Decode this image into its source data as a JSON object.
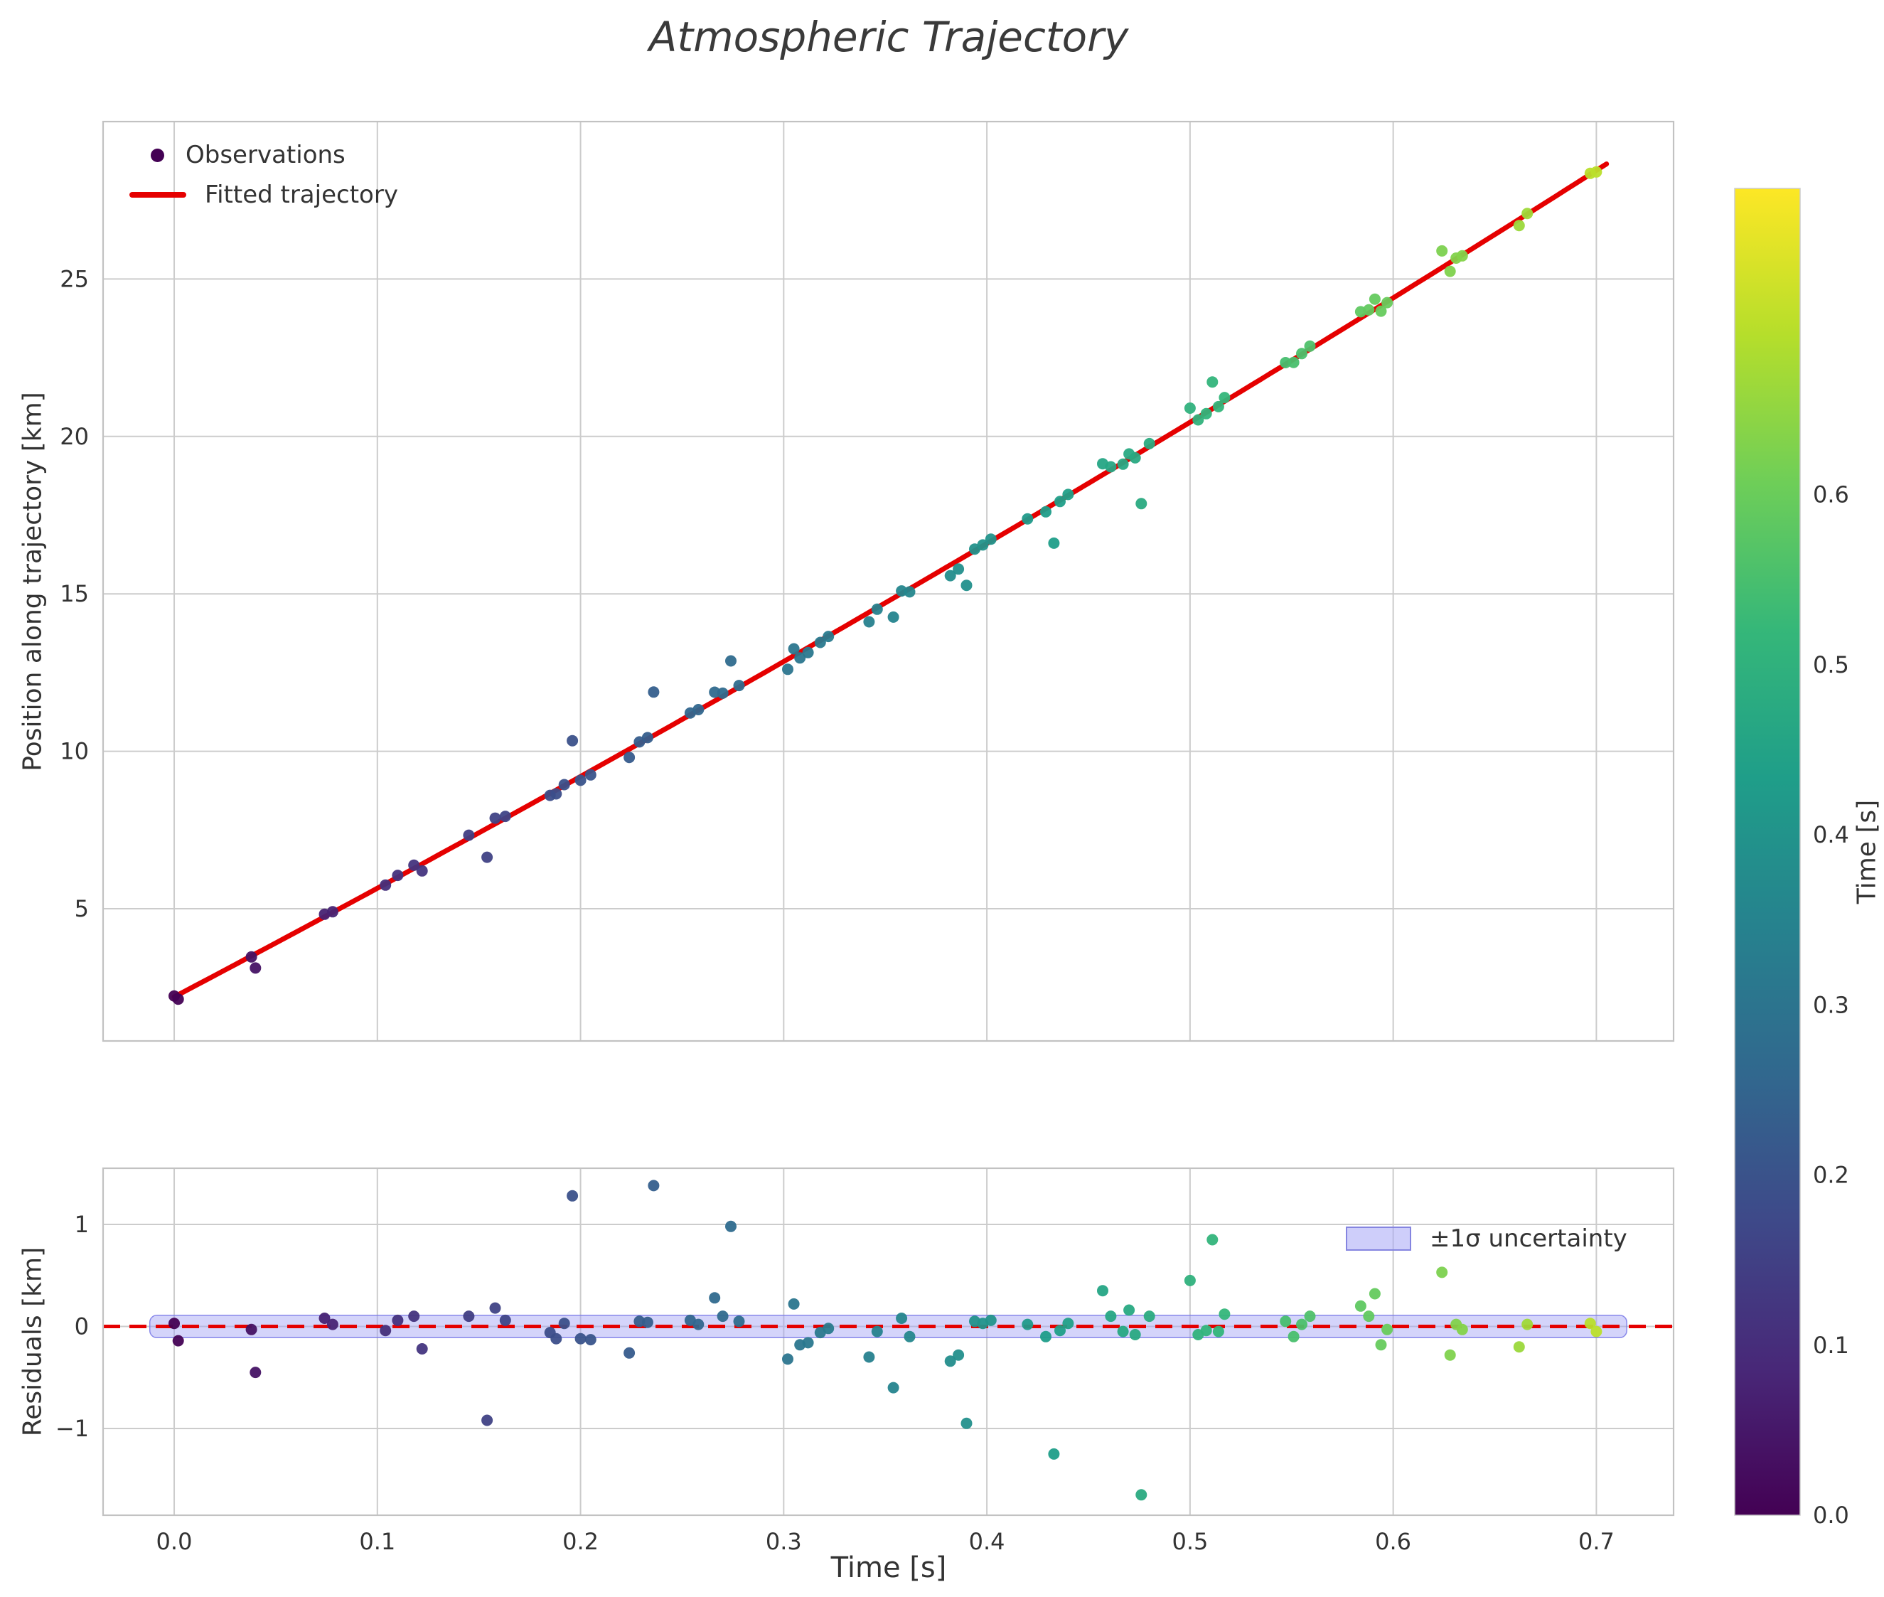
{
  "figure": {
    "title": "Atmospheric Trajectory",
    "background": "#ffffff"
  },
  "chart_data": [
    {
      "type": "scatter",
      "name": "trajectory-panel",
      "title": "Atmospheric Trajectory",
      "xlabel": "Time [s]",
      "ylabel": "Position along trajectory [km]",
      "xlim": [
        -0.035,
        0.738
      ],
      "ylim": [
        0.8,
        30.0
      ],
      "xticks": [
        0.0,
        0.1,
        0.2,
        0.3,
        0.4,
        0.5,
        0.6,
        0.7
      ],
      "show_xtick_labels": false,
      "yticks": [
        5,
        10,
        15,
        20,
        25
      ],
      "ytick_labels": [
        "5",
        "10",
        "15",
        "20",
        "25"
      ],
      "grid": true,
      "colormap": "viridis",
      "color_by": "time_s",
      "color_vmin": 0.0,
      "color_vmax": 0.78,
      "marker_color_first": "#440154",
      "fit_line": {
        "label": "Fitted trajectory",
        "color": "#e50000",
        "model": "position_km = 2.2 + 34*t + 5*t^2",
        "coeffs": [
          2.2,
          34,
          5
        ],
        "t_start": 0.0,
        "t_end": 0.705
      },
      "legend": {
        "position": "upper-left",
        "entries": [
          {
            "label": "Observations",
            "marker": "dot",
            "color": "#440154"
          },
          {
            "label": "Fitted trajectory",
            "marker": "line",
            "color": "#e50000"
          }
        ]
      },
      "series_note": "observations are [time_s, residual_km]; position_km = fit(t) + residual_km",
      "observations": [
        [
          0.0,
          0.03
        ],
        [
          0.002,
          -0.14
        ],
        [
          0.038,
          -0.03
        ],
        [
          0.04,
          -0.45
        ],
        [
          0.074,
          0.08
        ],
        [
          0.078,
          0.02
        ],
        [
          0.104,
          -0.04
        ],
        [
          0.11,
          0.06
        ],
        [
          0.118,
          0.1
        ],
        [
          0.122,
          -0.22
        ],
        [
          0.145,
          0.1
        ],
        [
          0.154,
          -0.92
        ],
        [
          0.158,
          0.18
        ],
        [
          0.163,
          0.06
        ],
        [
          0.185,
          -0.06
        ],
        [
          0.188,
          -0.12
        ],
        [
          0.192,
          0.03
        ],
        [
          0.196,
          1.28
        ],
        [
          0.2,
          -0.12
        ],
        [
          0.205,
          -0.13
        ],
        [
          0.224,
          -0.26
        ],
        [
          0.229,
          0.05
        ],
        [
          0.233,
          0.04
        ],
        [
          0.236,
          1.38
        ],
        [
          0.254,
          0.06
        ],
        [
          0.258,
          0.02
        ],
        [
          0.266,
          0.28
        ],
        [
          0.27,
          0.1
        ],
        [
          0.274,
          0.98
        ],
        [
          0.278,
          0.05
        ],
        [
          0.302,
          -0.32
        ],
        [
          0.305,
          0.22
        ],
        [
          0.308,
          -0.18
        ],
        [
          0.312,
          -0.16
        ],
        [
          0.318,
          -0.06
        ],
        [
          0.322,
          -0.02
        ],
        [
          0.342,
          -0.3
        ],
        [
          0.346,
          -0.05
        ],
        [
          0.354,
          -0.6
        ],
        [
          0.358,
          0.08
        ],
        [
          0.362,
          -0.1
        ],
        [
          0.382,
          -0.34
        ],
        [
          0.386,
          -0.28
        ],
        [
          0.39,
          -0.95
        ],
        [
          0.394,
          0.05
        ],
        [
          0.398,
          0.03
        ],
        [
          0.402,
          0.06
        ],
        [
          0.42,
          0.02
        ],
        [
          0.429,
          -0.1
        ],
        [
          0.433,
          -1.25
        ],
        [
          0.436,
          -0.04
        ],
        [
          0.44,
          0.03
        ],
        [
          0.457,
          0.35
        ],
        [
          0.461,
          0.1
        ],
        [
          0.467,
          -0.05
        ],
        [
          0.47,
          0.16
        ],
        [
          0.473,
          -0.08
        ],
        [
          0.476,
          -1.65
        ],
        [
          0.48,
          0.1
        ],
        [
          0.5,
          0.45
        ],
        [
          0.504,
          -0.08
        ],
        [
          0.508,
          -0.04
        ],
        [
          0.511,
          0.85
        ],
        [
          0.514,
          -0.05
        ],
        [
          0.517,
          0.12
        ],
        [
          0.547,
          0.05
        ],
        [
          0.551,
          -0.1
        ],
        [
          0.555,
          0.02
        ],
        [
          0.559,
          0.1
        ],
        [
          0.584,
          0.2
        ],
        [
          0.588,
          0.1
        ],
        [
          0.591,
          0.32
        ],
        [
          0.594,
          -0.18
        ],
        [
          0.597,
          -0.03
        ],
        [
          0.624,
          0.53
        ],
        [
          0.628,
          -0.28
        ],
        [
          0.631,
          0.02
        ],
        [
          0.634,
          -0.03
        ],
        [
          0.662,
          -0.2
        ],
        [
          0.666,
          0.02
        ],
        [
          0.697,
          0.03
        ],
        [
          0.7,
          -0.05
        ]
      ]
    },
    {
      "type": "scatter",
      "name": "residuals-panel",
      "xlabel": "Time [s]",
      "ylabel": "Residuals [km]",
      "xlim": [
        -0.035,
        0.738
      ],
      "ylim": [
        -1.85,
        1.55
      ],
      "xticks": [
        0.0,
        0.1,
        0.2,
        0.3,
        0.4,
        0.5,
        0.6,
        0.7
      ],
      "xtick_labels": [
        "0.0",
        "0.1",
        "0.2",
        "0.3",
        "0.4",
        "0.5",
        "0.6",
        "0.7"
      ],
      "yticks": [
        -1,
        0,
        1
      ],
      "ytick_labels": [
        "−1",
        "0",
        "1"
      ],
      "grid": true,
      "zero_line": {
        "color": "#e50000",
        "style": "dashed",
        "y": 0
      },
      "band": {
        "label": "±1σ uncertainty",
        "halfwidth_km": 0.11,
        "fill": "rgba(160,160,245,0.45)",
        "edge": "rgba(120,120,230,0.85)",
        "t_start": -0.012,
        "t_end": 0.715
      },
      "legend": {
        "position": "upper-right",
        "entries": [
          {
            "label": "±1σ uncertainty",
            "marker": "patch"
          }
        ]
      }
    }
  ],
  "colorbar": {
    "label": "Time [s]",
    "colormap": "viridis",
    "vmin": 0.0,
    "vmax": 0.78,
    "ticks": [
      0.0,
      0.1,
      0.2,
      0.3,
      0.4,
      0.5,
      0.6
    ],
    "tick_labels": [
      "0.0",
      "0.1",
      "0.2",
      "0.3",
      "0.4",
      "0.5",
      "0.6"
    ]
  }
}
